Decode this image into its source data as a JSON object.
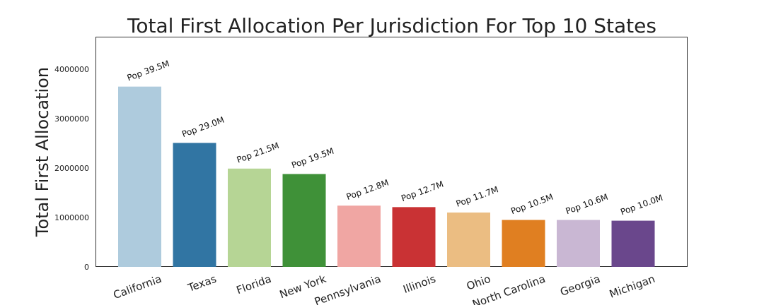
{
  "chart_data": {
    "type": "bar",
    "title": "Total First Allocation Per Jurisdiction For Top 10 States",
    "xlabel": "",
    "ylabel": "Total First Allocation",
    "ylim": [
      0,
      4660000
    ],
    "yticks": [
      0,
      1000000,
      2000000,
      3000000,
      4000000
    ],
    "ytick_labels": [
      "0",
      "1000000",
      "2000000",
      "3000000",
      "4000000"
    ],
    "grid": false,
    "categories": [
      "California",
      "Texas",
      "Florida",
      "New York",
      "Pennsylvania",
      "Illinois",
      "Ohio",
      "North Carolina",
      "Georgia",
      "Michigan"
    ],
    "values": [
      3650000,
      2510000,
      1990000,
      1880000,
      1240000,
      1210000,
      1100000,
      950000,
      950000,
      935000
    ],
    "annotations": [
      "Pop 39.5M",
      "Pop 29.0M",
      "Pop 21.5M",
      "Pop 19.5M",
      "Pop 12.8M",
      "Pop 12.7M",
      "Pop 11.7M",
      "Pop 10.5M",
      "Pop 10.6M",
      "Pop 10.0M"
    ],
    "colors": [
      "#aecbdd",
      "#3175a3",
      "#b6d595",
      "#3f9138",
      "#f0a6a3",
      "#c93234",
      "#ebbd82",
      "#e07f21",
      "#c9b7d3",
      "#6a478c"
    ]
  }
}
